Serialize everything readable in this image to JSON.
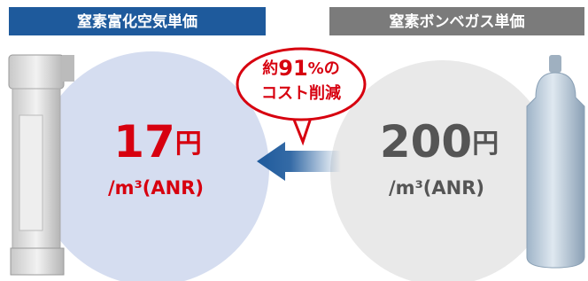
{
  "left": {
    "header": "窒素富化空気単価",
    "price": "17",
    "unit": "円",
    "per": "/m³(ANR)"
  },
  "right": {
    "header": "窒素ボンベガス単価",
    "price": "200",
    "unit": "円",
    "per": "/m³(ANR)"
  },
  "callout": {
    "prefix": "約",
    "number": "91",
    "suffix": "%の",
    "line2": "コスト削減"
  }
}
